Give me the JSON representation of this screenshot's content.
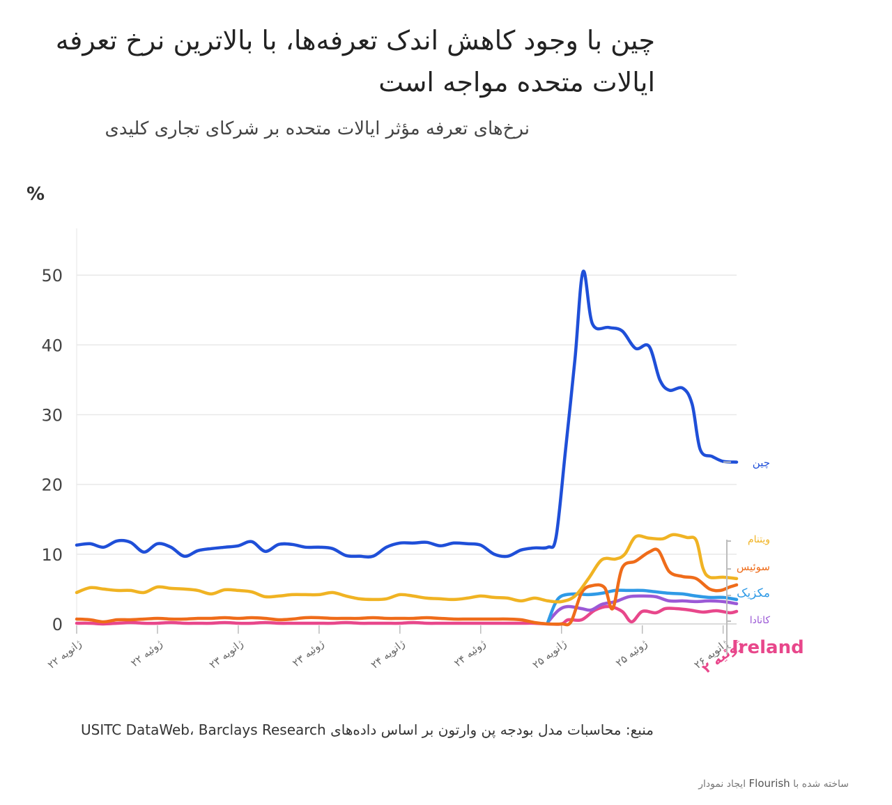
{
  "header": {
    "title": "چین با وجود کاهش اندک تعرفه‌ها، با بالاترین نرخ تعرفه ایالات متحده مواجه است",
    "subtitle": "نرخ‌های تعرفه مؤثر ایالات متحده بر شرکای تجاری کلیدی"
  },
  "footer": {
    "source": "منبع: محاسبات مدل بودجه پن وارتون بر اساس داده‌های USITC DataWeb، Barclays Research",
    "credit_prefix": "ساخته شده با",
    "credit_brand": "Flourish",
    "credit_suffix": "ایجاد نمودار"
  },
  "chart_data": {
    "type": "line",
    "ylabel": "%",
    "ylim": [
      0,
      55
    ],
    "yticks": [
      0,
      10,
      20,
      30,
      40,
      50
    ],
    "grid": true,
    "xlim": [
      0,
      48
    ],
    "x_ticks": [
      {
        "x": 0,
        "label": "۲۲ ژانویه"
      },
      {
        "x": 6,
        "label": "۲۲ ژوئیه"
      },
      {
        "x": 12,
        "label": "۲۳ ژانویه"
      },
      {
        "x": 18,
        "label": "۲۳ ژوئیه"
      },
      {
        "x": 24,
        "label": "۲۴ ژانویه"
      },
      {
        "x": 30,
        "label": "۲۴ ژوئیه"
      },
      {
        "x": 36,
        "label": "۲۵ ژانویه"
      },
      {
        "x": 42,
        "label": "۲۵ ژوئیه"
      },
      {
        "x": 48,
        "label": "۲۶ ژانویه"
      },
      {
        "x": 54,
        "label": "۲۶ ژوئیه"
      }
    ],
    "series": [
      {
        "name": "چین",
        "color": "#1f4fd8",
        "points": [
          [
            0,
            11.3
          ],
          [
            1,
            11.5
          ],
          [
            2,
            11.0
          ],
          [
            3,
            11.9
          ],
          [
            4,
            11.7
          ],
          [
            5,
            10.3
          ],
          [
            6,
            11.5
          ],
          [
            7,
            11.0
          ],
          [
            8,
            9.7
          ],
          [
            9,
            10.5
          ],
          [
            10,
            10.8
          ],
          [
            11,
            11.0
          ],
          [
            12,
            11.2
          ],
          [
            13,
            11.8
          ],
          [
            14,
            10.4
          ],
          [
            15,
            11.4
          ],
          [
            16,
            11.4
          ],
          [
            17,
            11.0
          ],
          [
            18,
            11.0
          ],
          [
            19,
            10.8
          ],
          [
            20,
            9.8
          ],
          [
            21,
            9.7
          ],
          [
            22,
            9.7
          ],
          [
            23,
            11.0
          ],
          [
            24,
            11.6
          ],
          [
            25,
            11.6
          ],
          [
            26,
            11.7
          ],
          [
            27,
            11.2
          ],
          [
            28,
            11.6
          ],
          [
            29,
            11.5
          ],
          [
            30,
            11.3
          ],
          [
            31,
            10.0
          ],
          [
            32,
            9.7
          ],
          [
            33,
            10.6
          ],
          [
            34,
            10.9
          ],
          [
            35,
            11.0
          ],
          [
            35.6,
            12.5
          ],
          [
            36.3,
            25
          ],
          [
            37,
            38
          ],
          [
            37.6,
            50.5
          ],
          [
            38.3,
            43
          ],
          [
            39.5,
            42.5
          ],
          [
            40.5,
            42
          ],
          [
            41.5,
            39.5
          ],
          [
            42.5,
            39.8
          ],
          [
            43.3,
            35
          ],
          [
            44,
            33.5
          ],
          [
            45,
            33.8
          ],
          [
            45.7,
            31.5
          ],
          [
            46.3,
            25
          ],
          [
            47.2,
            24
          ],
          [
            48,
            23.3
          ],
          [
            49,
            23.2
          ]
        ]
      },
      {
        "name": "ویتنام",
        "color": "#f0b323",
        "points": [
          [
            0,
            4.5
          ],
          [
            1,
            5.2
          ],
          [
            2,
            5.0
          ],
          [
            3,
            4.8
          ],
          [
            4,
            4.8
          ],
          [
            5,
            4.5
          ],
          [
            6,
            5.3
          ],
          [
            7,
            5.1
          ],
          [
            8,
            5.0
          ],
          [
            9,
            4.8
          ],
          [
            10,
            4.3
          ],
          [
            11,
            4.9
          ],
          [
            12,
            4.8
          ],
          [
            13,
            4.6
          ],
          [
            14,
            3.9
          ],
          [
            15,
            4.0
          ],
          [
            16,
            4.2
          ],
          [
            17,
            4.2
          ],
          [
            18,
            4.2
          ],
          [
            19,
            4.5
          ],
          [
            20,
            4.0
          ],
          [
            21,
            3.6
          ],
          [
            22,
            3.5
          ],
          [
            23,
            3.6
          ],
          [
            24,
            4.2
          ],
          [
            25,
            4.0
          ],
          [
            26,
            3.7
          ],
          [
            27,
            3.6
          ],
          [
            28,
            3.5
          ],
          [
            29,
            3.7
          ],
          [
            30,
            4.0
          ],
          [
            31,
            3.8
          ],
          [
            32,
            3.7
          ],
          [
            33,
            3.3
          ],
          [
            34,
            3.7
          ],
          [
            35,
            3.3
          ],
          [
            36,
            3.2
          ],
          [
            37,
            4.0
          ],
          [
            38,
            6.5
          ],
          [
            39,
            9.2
          ],
          [
            40,
            9.3
          ],
          [
            40.7,
            10.0
          ],
          [
            41.5,
            12.5
          ],
          [
            42.5,
            12.3
          ],
          [
            43.5,
            12.2
          ],
          [
            44.3,
            12.8
          ],
          [
            45.3,
            12.4
          ],
          [
            46,
            12.0
          ],
          [
            46.5,
            8.0
          ],
          [
            47,
            6.7
          ],
          [
            48,
            6.7
          ],
          [
            49,
            6.5
          ]
        ]
      },
      {
        "name": "سوئیس",
        "color": "#ef6c1a",
        "points": [
          [
            0,
            0.7
          ],
          [
            1,
            0.6
          ],
          [
            2,
            0.3
          ],
          [
            3,
            0.6
          ],
          [
            4,
            0.6
          ],
          [
            5,
            0.7
          ],
          [
            6,
            0.8
          ],
          [
            7,
            0.7
          ],
          [
            8,
            0.7
          ],
          [
            9,
            0.8
          ],
          [
            10,
            0.8
          ],
          [
            11,
            0.9
          ],
          [
            12,
            0.8
          ],
          [
            13,
            0.9
          ],
          [
            14,
            0.8
          ],
          [
            15,
            0.6
          ],
          [
            16,
            0.7
          ],
          [
            17,
            0.9
          ],
          [
            18,
            0.9
          ],
          [
            19,
            0.8
          ],
          [
            20,
            0.8
          ],
          [
            21,
            0.8
          ],
          [
            22,
            0.9
          ],
          [
            23,
            0.8
          ],
          [
            24,
            0.8
          ],
          [
            25,
            0.8
          ],
          [
            26,
            0.9
          ],
          [
            27,
            0.8
          ],
          [
            28,
            0.7
          ],
          [
            29,
            0.7
          ],
          [
            30,
            0.7
          ],
          [
            31,
            0.7
          ],
          [
            32,
            0.7
          ],
          [
            33,
            0.6
          ],
          [
            34,
            0.2
          ],
          [
            35,
            0.0
          ],
          [
            36,
            0.0
          ],
          [
            36.7,
            0.3
          ],
          [
            37.5,
            4.5
          ],
          [
            38.3,
            5.5
          ],
          [
            39.2,
            5.2
          ],
          [
            39.8,
            2.2
          ],
          [
            40.5,
            8.0
          ],
          [
            41.5,
            9.0
          ],
          [
            42.5,
            10.3
          ],
          [
            43.2,
            10.5
          ],
          [
            44,
            7.5
          ],
          [
            45,
            6.8
          ],
          [
            46,
            6.5
          ],
          [
            47,
            5.0
          ],
          [
            47.8,
            4.8
          ],
          [
            48.5,
            5.3
          ],
          [
            49,
            5.6
          ]
        ]
      },
      {
        "name": "مکزیک",
        "color": "#2f9ae6",
        "points": [
          [
            35,
            0.3
          ],
          [
            35.5,
            2.8
          ],
          [
            36,
            4.0
          ],
          [
            37,
            4.3
          ],
          [
            38,
            4.2
          ],
          [
            39,
            4.4
          ],
          [
            40,
            4.8
          ],
          [
            41,
            4.8
          ],
          [
            42,
            4.8
          ],
          [
            43,
            4.6
          ],
          [
            44,
            4.4
          ],
          [
            45,
            4.3
          ],
          [
            46,
            4.0
          ],
          [
            47,
            3.8
          ],
          [
            48,
            3.8
          ],
          [
            49,
            3.5
          ]
        ]
      },
      {
        "name": "کانادا",
        "color": "#9b59d6",
        "points": [
          [
            35,
            0.3
          ],
          [
            35.8,
            2.0
          ],
          [
            36.5,
            2.5
          ],
          [
            37.5,
            2.2
          ],
          [
            38.2,
            2.0
          ],
          [
            39,
            2.8
          ],
          [
            40,
            3.2
          ],
          [
            41,
            3.9
          ],
          [
            42,
            4.0
          ],
          [
            43,
            3.9
          ],
          [
            44,
            3.3
          ],
          [
            45,
            3.3
          ],
          [
            46,
            3.2
          ],
          [
            47,
            3.3
          ],
          [
            48,
            3.2
          ],
          [
            49,
            2.9
          ]
        ]
      },
      {
        "name": "Ireland",
        "color": "#e8478b",
        "points": [
          [
            0,
            0.1
          ],
          [
            1,
            0.1
          ],
          [
            2,
            0.0
          ],
          [
            3,
            0.1
          ],
          [
            4,
            0.2
          ],
          [
            5,
            0.1
          ],
          [
            6,
            0.1
          ],
          [
            7,
            0.2
          ],
          [
            8,
            0.1
          ],
          [
            9,
            0.1
          ],
          [
            10,
            0.1
          ],
          [
            11,
            0.2
          ],
          [
            12,
            0.1
          ],
          [
            13,
            0.1
          ],
          [
            14,
            0.2
          ],
          [
            15,
            0.1
          ],
          [
            16,
            0.1
          ],
          [
            17,
            0.1
          ],
          [
            18,
            0.1
          ],
          [
            19,
            0.1
          ],
          [
            20,
            0.2
          ],
          [
            21,
            0.1
          ],
          [
            22,
            0.1
          ],
          [
            23,
            0.1
          ],
          [
            24,
            0.1
          ],
          [
            25,
            0.2
          ],
          [
            26,
            0.1
          ],
          [
            27,
            0.1
          ],
          [
            28,
            0.1
          ],
          [
            29,
            0.1
          ],
          [
            30,
            0.1
          ],
          [
            31,
            0.1
          ],
          [
            32,
            0.1
          ],
          [
            33,
            0.1
          ],
          [
            34,
            0.1
          ],
          [
            35,
            0.0
          ],
          [
            36,
            0.0
          ],
          [
            36.5,
            0.6
          ],
          [
            37.5,
            0.6
          ],
          [
            38.5,
            2.0
          ],
          [
            39.5,
            2.5
          ],
          [
            40.5,
            1.8
          ],
          [
            41.2,
            0.3
          ],
          [
            42,
            1.8
          ],
          [
            43,
            1.6
          ],
          [
            43.7,
            2.2
          ],
          [
            44.5,
            2.2
          ],
          [
            45.5,
            2.0
          ],
          [
            46.5,
            1.7
          ],
          [
            47.5,
            1.9
          ],
          [
            48.5,
            1.6
          ],
          [
            49,
            1.8
          ]
        ]
      }
    ],
    "last_tick_label": "۲ ژوئیه"
  }
}
